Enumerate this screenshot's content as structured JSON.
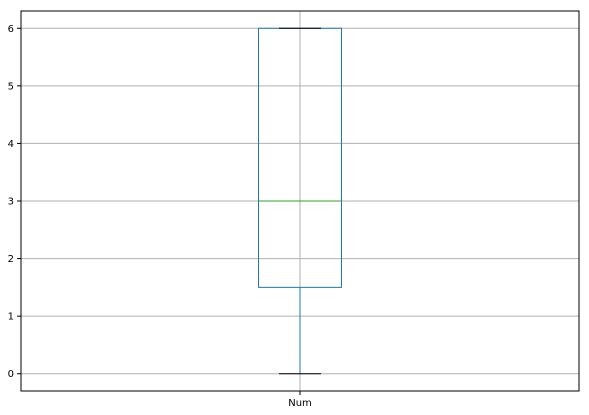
{
  "chart_data": {
    "type": "box",
    "categories": [
      "Num"
    ],
    "boxes": [
      {
        "label": "Num",
        "whisker_low": 0,
        "q1": 1.5,
        "median": 3,
        "q3": 6,
        "whisker_high": 6
      }
    ],
    "title": "",
    "xlabel": "",
    "ylabel": "",
    "ylim": [
      -0.3,
      6.3
    ],
    "yticks": [
      "0",
      "1",
      "2",
      "3",
      "4",
      "5",
      "6"
    ],
    "grid": true,
    "colors": {
      "box": "#1f77b4",
      "median": "#2ca02c",
      "whisker_cap": "#000000",
      "grid": "#b0b0b0",
      "axes": "#000000"
    }
  }
}
